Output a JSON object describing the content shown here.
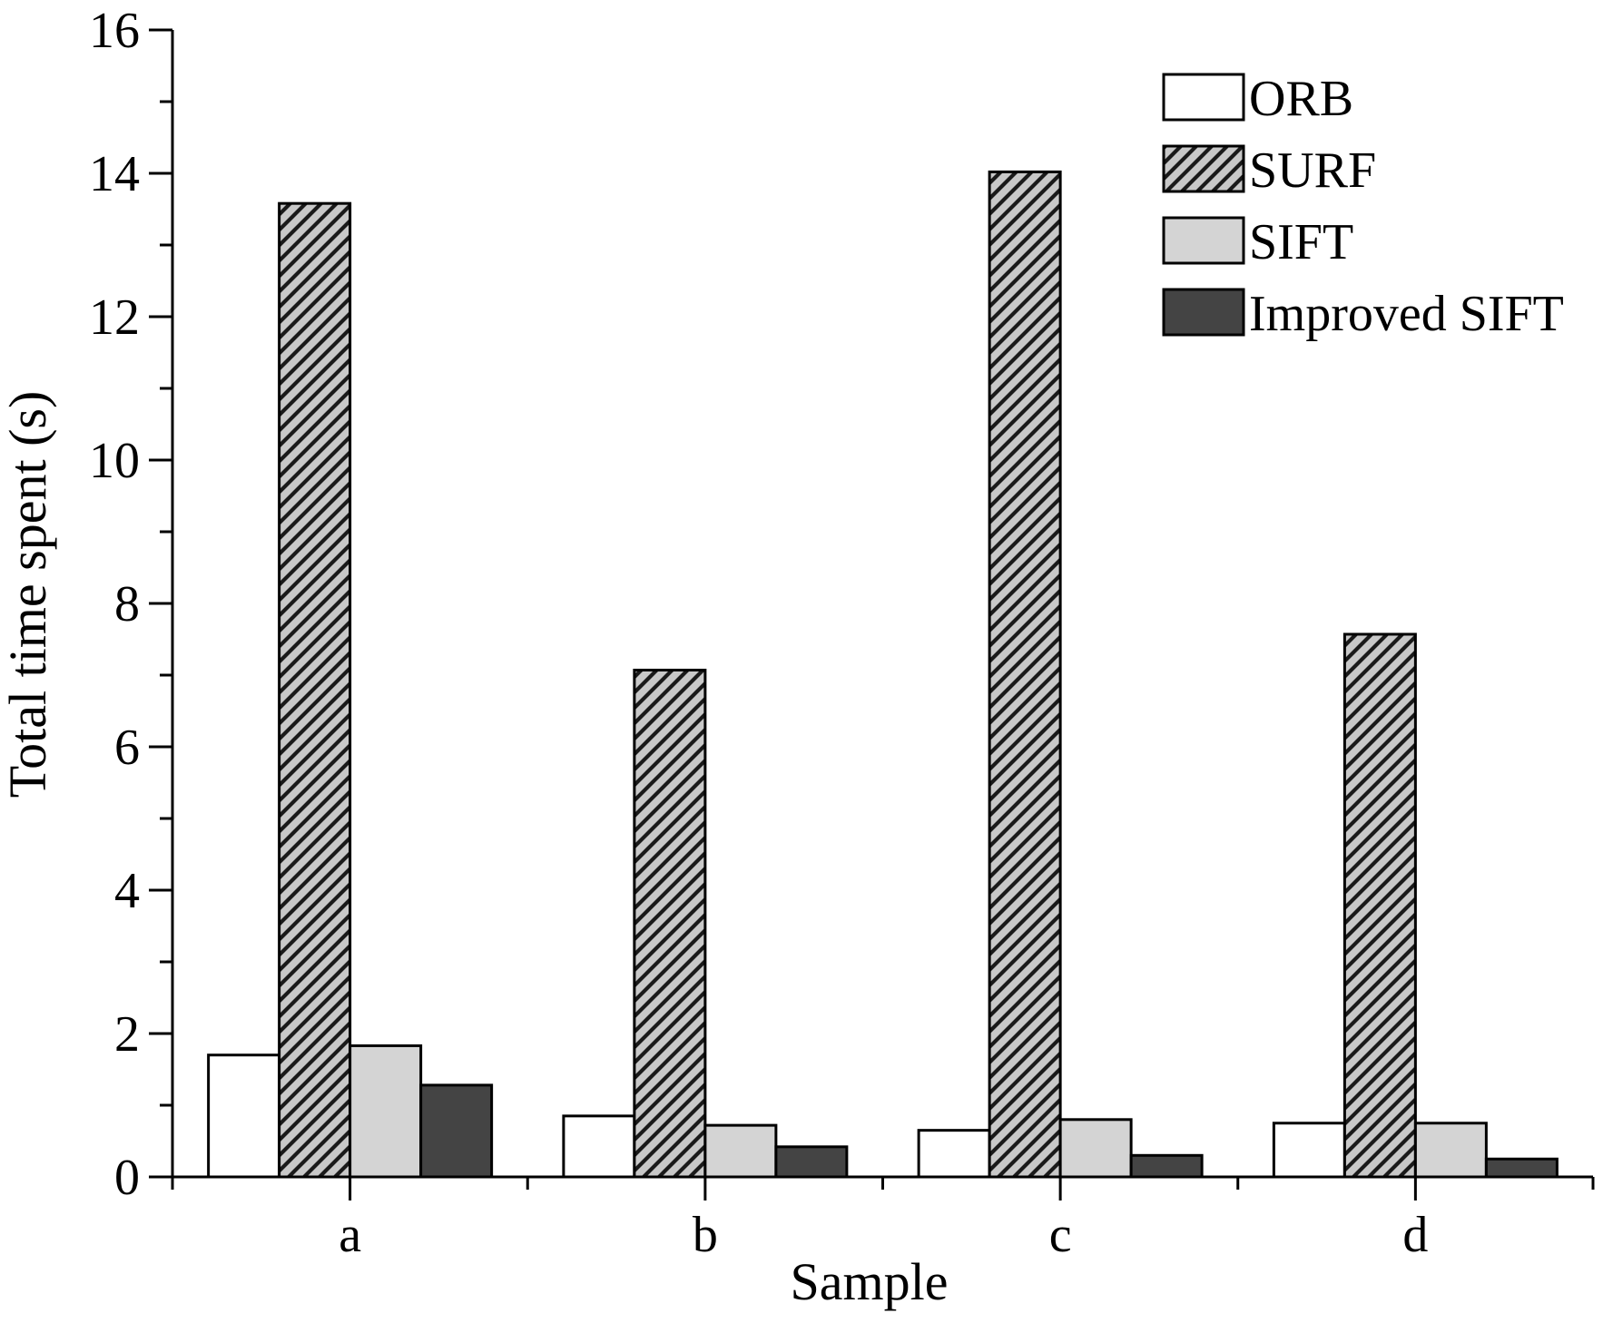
{
  "chart_data": {
    "type": "bar",
    "title": "",
    "xlabel": "Sample",
    "ylabel": "Total time spent (s)",
    "categories": [
      "a",
      "b",
      "c",
      "d"
    ],
    "ylim": [
      0,
      16
    ],
    "yticks": [
      0,
      2,
      4,
      6,
      8,
      10,
      12,
      14,
      16
    ],
    "grid": false,
    "legend_position": "top-right",
    "series": [
      {
        "name": "ORB",
        "values": [
          1.7,
          0.85,
          0.65,
          0.75
        ],
        "fill": "#ffffff",
        "pattern": "none"
      },
      {
        "name": "SURF",
        "values": [
          13.58,
          7.07,
          14.02,
          7.57
        ],
        "fill": "#c8c8c8",
        "pattern": "diagonal-hatch"
      },
      {
        "name": "SIFT",
        "values": [
          1.83,
          0.72,
          0.8,
          0.75
        ],
        "fill": "#d4d4d4",
        "pattern": "none"
      },
      {
        "name": "Improved SIFT",
        "values": [
          1.28,
          0.42,
          0.3,
          0.25
        ],
        "fill": "#444444",
        "pattern": "none"
      }
    ]
  },
  "colors": {
    "axis": "#000000",
    "bar_outline": "#000000",
    "hatch_line": "#1a1a1a"
  }
}
